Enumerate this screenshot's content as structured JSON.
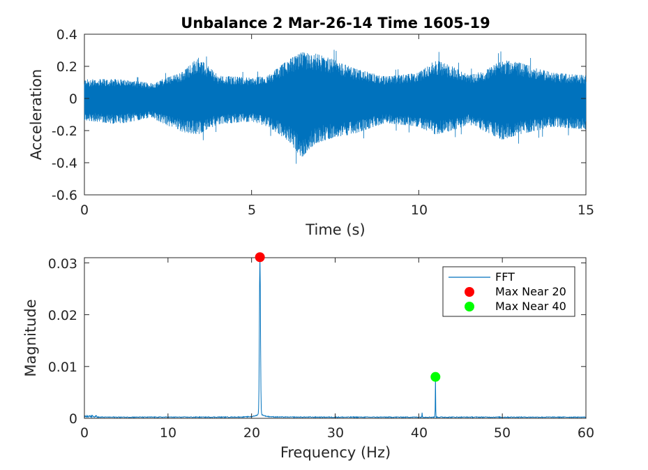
{
  "chart_data": [
    {
      "type": "line",
      "title": "Unbalance 2 Mar-26-14 Time 1605-19",
      "xlabel": "Time (s)",
      "ylabel": "Acceleration",
      "xlim": [
        0,
        15
      ],
      "ylim": [
        -0.6,
        0.4
      ],
      "xticks": [
        "0",
        "5",
        "10",
        "15"
      ],
      "yticks": [
        "-0.6",
        "-0.4",
        "-0.2",
        "0",
        "0.2",
        "0.4"
      ],
      "color": "#0072BD",
      "grid": false,
      "series": [
        {
          "envelope": {
            "t": [
              0,
              1,
              2,
              2.9,
              3.4,
              4,
              5,
              5.5,
              6.1,
              6.5,
              6.9,
              7.5,
              8,
              9,
              10,
              10.5,
              11,
              11.5,
              12,
              12.5,
              13,
              14,
              15
            ],
            "upper": [
              0.15,
              0.15,
              0.12,
              0.2,
              0.32,
              0.18,
              0.16,
              0.18,
              0.3,
              0.36,
              0.35,
              0.3,
              0.24,
              0.17,
              0.2,
              0.3,
              0.25,
              0.18,
              0.22,
              0.3,
              0.28,
              0.2,
              0.18
            ],
            "lower": [
              -0.17,
              -0.2,
              -0.15,
              -0.26,
              -0.28,
              -0.2,
              -0.18,
              -0.22,
              -0.33,
              -0.46,
              -0.35,
              -0.3,
              -0.28,
              -0.19,
              -0.22,
              -0.28,
              -0.25,
              -0.2,
              -0.26,
              -0.32,
              -0.28,
              -0.22,
              -0.24
            ]
          }
        }
      ]
    },
    {
      "type": "line",
      "xlabel": "Frequency (Hz)",
      "ylabel": "Magnitude",
      "xlim": [
        0,
        60
      ],
      "ylim": [
        0,
        0.031
      ],
      "xticks": [
        "0",
        "10",
        "20",
        "30",
        "40",
        "50",
        "60"
      ],
      "yticks": [
        "0",
        "0.01",
        "0.02",
        "0.03"
      ],
      "series": [
        {
          "name": "FFT",
          "color": "#0072BD",
          "peaks": [
            {
              "x": 21.0,
              "y": 0.0311
            },
            {
              "x": 42.0,
              "y": 0.008
            },
            {
              "x": 40.4,
              "y": 0.0008
            }
          ]
        },
        {
          "name": "Max Near 20",
          "color": "#FF0000",
          "points": [
            {
              "x": 21.0,
              "y": 0.0311
            }
          ]
        },
        {
          "name": "Max Near 40",
          "color": "#00FF00",
          "points": [
            {
              "x": 42.0,
              "y": 0.008
            }
          ]
        }
      ],
      "legend": "top-right"
    }
  ]
}
